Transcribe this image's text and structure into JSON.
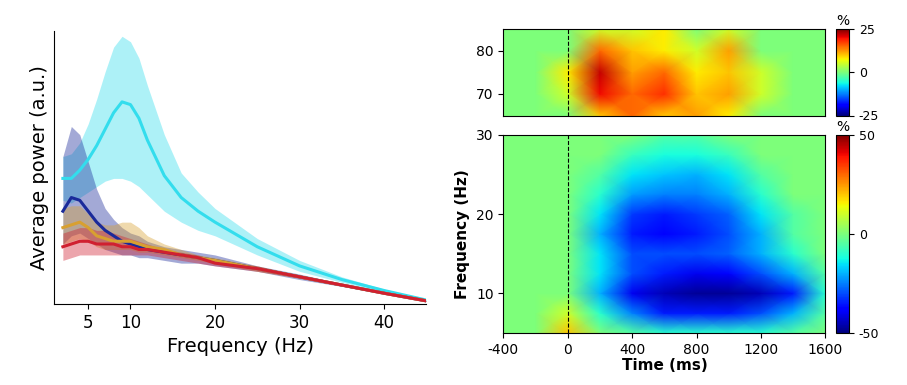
{
  "chart_data": [
    {
      "type": "line",
      "x_label": "Frequency (Hz)",
      "y_label": "Average power (a.u.)",
      "xlim": [
        1,
        45
      ],
      "ylim": [
        0,
        10
      ],
      "xticks": [
        5,
        10,
        20,
        30,
        40
      ],
      "yticks": [],
      "tick_labels": "x",
      "x": [
        2,
        3,
        4,
        5,
        6,
        7,
        8,
        9,
        10,
        11,
        12,
        14,
        16,
        18,
        20,
        25,
        30,
        35,
        40,
        45
      ],
      "series": [
        {
          "color": "#33dded",
          "values": [
            4.6,
            4.6,
            4.9,
            5.3,
            5.8,
            6.4,
            7.0,
            7.4,
            7.3,
            6.8,
            6.0,
            4.7,
            3.9,
            3.4,
            3.0,
            2.1,
            1.4,
            0.9,
            0.5,
            0.15
          ],
          "lower": [
            3.8,
            3.7,
            3.9,
            4.1,
            4.3,
            4.5,
            4.6,
            4.6,
            4.5,
            4.3,
            4.0,
            3.4,
            3.0,
            2.7,
            2.5,
            1.8,
            1.2,
            0.8,
            0.45,
            0.12
          ],
          "upper": [
            5.4,
            5.5,
            5.9,
            6.6,
            7.5,
            8.5,
            9.4,
            9.8,
            9.6,
            9.0,
            8.0,
            6.2,
            4.8,
            4.1,
            3.5,
            2.4,
            1.6,
            1.0,
            0.55,
            0.18
          ]
        },
        {
          "color": "#1a2a9a",
          "values": [
            3.4,
            3.9,
            3.8,
            3.4,
            3.0,
            2.7,
            2.5,
            2.3,
            2.2,
            2.1,
            2.0,
            1.9,
            1.8,
            1.7,
            1.6,
            1.3,
            1.0,
            0.7,
            0.4,
            0.12
          ],
          "lower": [
            2.2,
            2.5,
            2.6,
            2.4,
            2.2,
            2.0,
            1.9,
            1.8,
            1.8,
            1.7,
            1.7,
            1.6,
            1.5,
            1.5,
            1.4,
            1.2,
            0.9,
            0.65,
            0.38,
            0.11
          ],
          "upper": [
            5.4,
            6.5,
            6.2,
            5.2,
            4.2,
            3.5,
            3.1,
            2.8,
            2.6,
            2.5,
            2.3,
            2.1,
            2.0,
            1.9,
            1.8,
            1.4,
            1.1,
            0.75,
            0.42,
            0.13
          ]
        },
        {
          "color": "#d8a030",
          "values": [
            2.8,
            2.9,
            3.0,
            2.8,
            2.5,
            2.4,
            2.3,
            2.3,
            2.3,
            2.2,
            2.1,
            2.0,
            1.8,
            1.7,
            1.6,
            1.3,
            1.0,
            0.7,
            0.4,
            0.12
          ],
          "lower": [
            2.2,
            2.3,
            2.4,
            2.3,
            2.1,
            2.0,
            2.0,
            2.0,
            2.0,
            1.9,
            1.9,
            1.8,
            1.7,
            1.6,
            1.5,
            1.2,
            0.95,
            0.66,
            0.38,
            0.11
          ],
          "upper": [
            3.5,
            3.6,
            3.6,
            3.3,
            3.0,
            2.9,
            2.9,
            3.0,
            3.0,
            2.8,
            2.5,
            2.2,
            2.0,
            1.8,
            1.7,
            1.4,
            1.05,
            0.74,
            0.42,
            0.13
          ]
        },
        {
          "color": "#d02030",
          "values": [
            2.1,
            2.2,
            2.3,
            2.3,
            2.2,
            2.2,
            2.2,
            2.1,
            2.1,
            2.0,
            2.0,
            1.9,
            1.8,
            1.7,
            1.5,
            1.3,
            1.0,
            0.7,
            0.4,
            0.12
          ],
          "lower": [
            1.6,
            1.7,
            1.8,
            1.8,
            1.8,
            1.8,
            1.8,
            1.8,
            1.8,
            1.8,
            1.8,
            1.7,
            1.6,
            1.5,
            1.4,
            1.2,
            0.95,
            0.66,
            0.38,
            0.11
          ],
          "upper": [
            2.6,
            2.7,
            2.8,
            2.8,
            2.7,
            2.7,
            2.6,
            2.5,
            2.4,
            2.3,
            2.2,
            2.0,
            1.9,
            1.8,
            1.6,
            1.4,
            1.05,
            0.74,
            0.42,
            0.13
          ]
        }
      ]
    },
    {
      "type": "heatmap",
      "xlim": [
        -400,
        1600
      ],
      "ylim": [
        65,
        85
      ],
      "xticks": [],
      "yticks": [
        70,
        80
      ],
      "tick_labels": "y",
      "reference_line": {
        "x": 0,
        "line_style": "dashed"
      },
      "x": [
        -400,
        -200,
        0,
        200,
        400,
        600,
        800,
        1000,
        1200,
        1400,
        1600
      ],
      "y": [
        65,
        70,
        75,
        80,
        85
      ],
      "cells": [
        [
          0,
          0,
          0,
          10,
          15,
          10,
          12,
          8,
          0,
          0,
          0
        ],
        [
          0,
          0,
          5,
          20,
          15,
          18,
          10,
          12,
          5,
          0,
          0
        ],
        [
          0,
          0,
          8,
          22,
          12,
          15,
          8,
          10,
          5,
          0,
          0
        ],
        [
          0,
          0,
          0,
          15,
          10,
          8,
          5,
          12,
          0,
          0,
          0
        ],
        [
          0,
          0,
          0,
          5,
          5,
          8,
          0,
          5,
          0,
          0,
          0
        ]
      ],
      "colorbar": {
        "range": [
          -25,
          25
        ],
        "ticks": [
          -25,
          0,
          25
        ],
        "label": "%"
      }
    },
    {
      "type": "heatmap",
      "x_label": "Time (ms)",
      "y_label": "Frequency (Hz)",
      "xlim": [
        -400,
        1600
      ],
      "ylim": [
        5,
        30
      ],
      "xticks": [
        -400,
        0,
        400,
        800,
        1200,
        1600
      ],
      "yticks": [
        10,
        20,
        30
      ],
      "reference_line": {
        "x": 0,
        "line_style": "dashed"
      },
      "x": [
        -400,
        -200,
        0,
        200,
        400,
        600,
        800,
        1000,
        1200,
        1400,
        1600
      ],
      "y": [
        5,
        7.5,
        10,
        12.5,
        15,
        17.5,
        20,
        22.5,
        25,
        27.5,
        30
      ],
      "cells": [
        [
          0,
          0,
          20,
          0,
          -5,
          -10,
          -10,
          -10,
          -10,
          -5,
          0
        ],
        [
          0,
          0,
          10,
          -10,
          -25,
          -35,
          -35,
          -35,
          -30,
          -20,
          -5
        ],
        [
          0,
          0,
          0,
          -20,
          -40,
          -45,
          -48,
          -48,
          -45,
          -35,
          -10
        ],
        [
          0,
          0,
          0,
          -15,
          -30,
          -35,
          -40,
          -38,
          -30,
          -20,
          -5
        ],
        [
          0,
          0,
          0,
          -15,
          -30,
          -30,
          -30,
          -28,
          -20,
          -10,
          0
        ],
        [
          0,
          0,
          0,
          -20,
          -35,
          -38,
          -35,
          -30,
          -20,
          -5,
          0
        ],
        [
          0,
          0,
          0,
          -15,
          -32,
          -35,
          -32,
          -28,
          -15,
          -5,
          0
        ],
        [
          0,
          0,
          0,
          -10,
          -22,
          -25,
          -25,
          -20,
          -10,
          0,
          0
        ],
        [
          0,
          0,
          0,
          -5,
          -15,
          -18,
          -20,
          -15,
          -5,
          0,
          0
        ],
        [
          0,
          0,
          0,
          0,
          -8,
          -12,
          -12,
          -8,
          0,
          0,
          0
        ],
        [
          0,
          0,
          0,
          0,
          0,
          -5,
          -5,
          0,
          0,
          0,
          0
        ]
      ],
      "colorbar": {
        "range": [
          -50,
          50
        ],
        "ticks": [
          -50,
          0,
          50
        ],
        "label": "%"
      }
    }
  ]
}
